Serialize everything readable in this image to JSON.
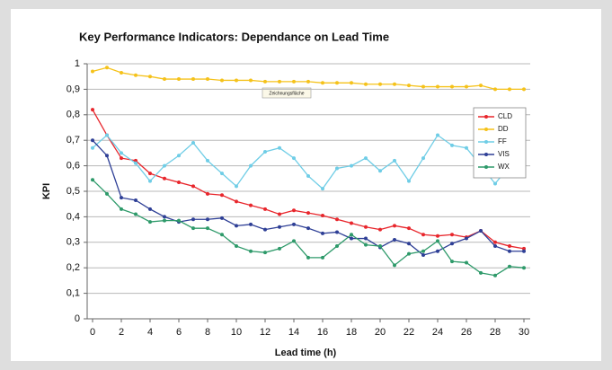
{
  "chart_data": {
    "type": "line",
    "title": "Key Performance Indicators: Dependance on Lead Time",
    "x_label": "Lead time (h)",
    "y_label": "KPI",
    "annotation": "Zeichnungsfläche",
    "x": [
      0,
      1,
      2,
      3,
      4,
      5,
      6,
      7,
      8,
      9,
      10,
      11,
      12,
      13,
      14,
      15,
      16,
      17,
      18,
      19,
      20,
      21,
      22,
      23,
      24,
      25,
      26,
      27,
      28,
      29,
      30
    ],
    "xlim": [
      0,
      30
    ],
    "xticks": [
      0,
      2,
      4,
      6,
      8,
      10,
      12,
      14,
      16,
      18,
      20,
      22,
      24,
      26,
      28,
      30
    ],
    "ylim": [
      0,
      1
    ],
    "yticks": [
      0,
      {
        "value": 0.1,
        "label": "0,1"
      },
      {
        "value": 0.2,
        "label": "0,2"
      },
      {
        "value": 0.3,
        "label": "0,3"
      },
      {
        "value": 0.4,
        "label": "0,4"
      },
      {
        "value": 0.5,
        "label": "0,5"
      },
      {
        "value": 0.6,
        "label": "0,6"
      },
      {
        "value": 0.7,
        "label": "0,7"
      },
      {
        "value": 0.8,
        "label": "0,8"
      },
      {
        "value": 0.9,
        "label": "0,9"
      },
      1
    ],
    "grid": true,
    "legend": "upper right",
    "series": [
      {
        "name": "CLD",
        "color": "#e8262c",
        "values": [
          0.82,
          0.72,
          0.63,
          0.62,
          0.57,
          0.55,
          0.535,
          0.52,
          0.49,
          0.485,
          0.46,
          0.445,
          0.43,
          0.41,
          0.425,
          0.415,
          0.405,
          0.39,
          0.375,
          0.36,
          0.35,
          0.365,
          0.355,
          0.33,
          0.325,
          0.33,
          0.32,
          0.345,
          0.3,
          0.285,
          0.275
        ]
      },
      {
        "name": "DD",
        "color": "#f5c21a",
        "values": [
          0.97,
          0.985,
          0.965,
          0.955,
          0.95,
          0.94,
          0.94,
          0.94,
          0.94,
          0.935,
          0.935,
          0.935,
          0.93,
          0.93,
          0.93,
          0.93,
          0.925,
          0.925,
          0.925,
          0.92,
          0.92,
          0.92,
          0.915,
          0.91,
          0.91,
          0.91,
          0.91,
          0.915,
          0.9,
          0.9,
          0.9
        ]
      },
      {
        "name": "FF",
        "color": "#6fcde6",
        "values": [
          0.67,
          0.72,
          0.65,
          0.61,
          0.54,
          0.6,
          0.64,
          0.69,
          0.62,
          0.57,
          0.52,
          0.6,
          0.655,
          0.67,
          0.63,
          0.56,
          0.51,
          0.59,
          0.6,
          0.63,
          0.58,
          0.62,
          0.54,
          0.63,
          0.72,
          0.68,
          0.67,
          0.6,
          0.53,
          0.6,
          0.63
        ]
      },
      {
        "name": "VIS",
        "color": "#2e3f96",
        "values": [
          0.7,
          0.64,
          0.475,
          0.465,
          0.43,
          0.4,
          0.38,
          0.39,
          0.39,
          0.395,
          0.365,
          0.37,
          0.35,
          0.36,
          0.37,
          0.355,
          0.335,
          0.34,
          0.315,
          0.315,
          0.28,
          0.31,
          0.295,
          0.25,
          0.265,
          0.295,
          0.315,
          0.345,
          0.285,
          0.265,
          0.265
        ]
      },
      {
        "name": "WX",
        "color": "#2e9a6a",
        "values": [
          0.545,
          0.49,
          0.43,
          0.41,
          0.38,
          0.385,
          0.385,
          0.355,
          0.355,
          0.33,
          0.285,
          0.265,
          0.26,
          0.275,
          0.305,
          0.24,
          0.24,
          0.285,
          0.33,
          0.29,
          0.285,
          0.21,
          0.255,
          0.265,
          0.305,
          0.225,
          0.22,
          0.18,
          0.17,
          0.205,
          0.2
        ]
      }
    ]
  }
}
